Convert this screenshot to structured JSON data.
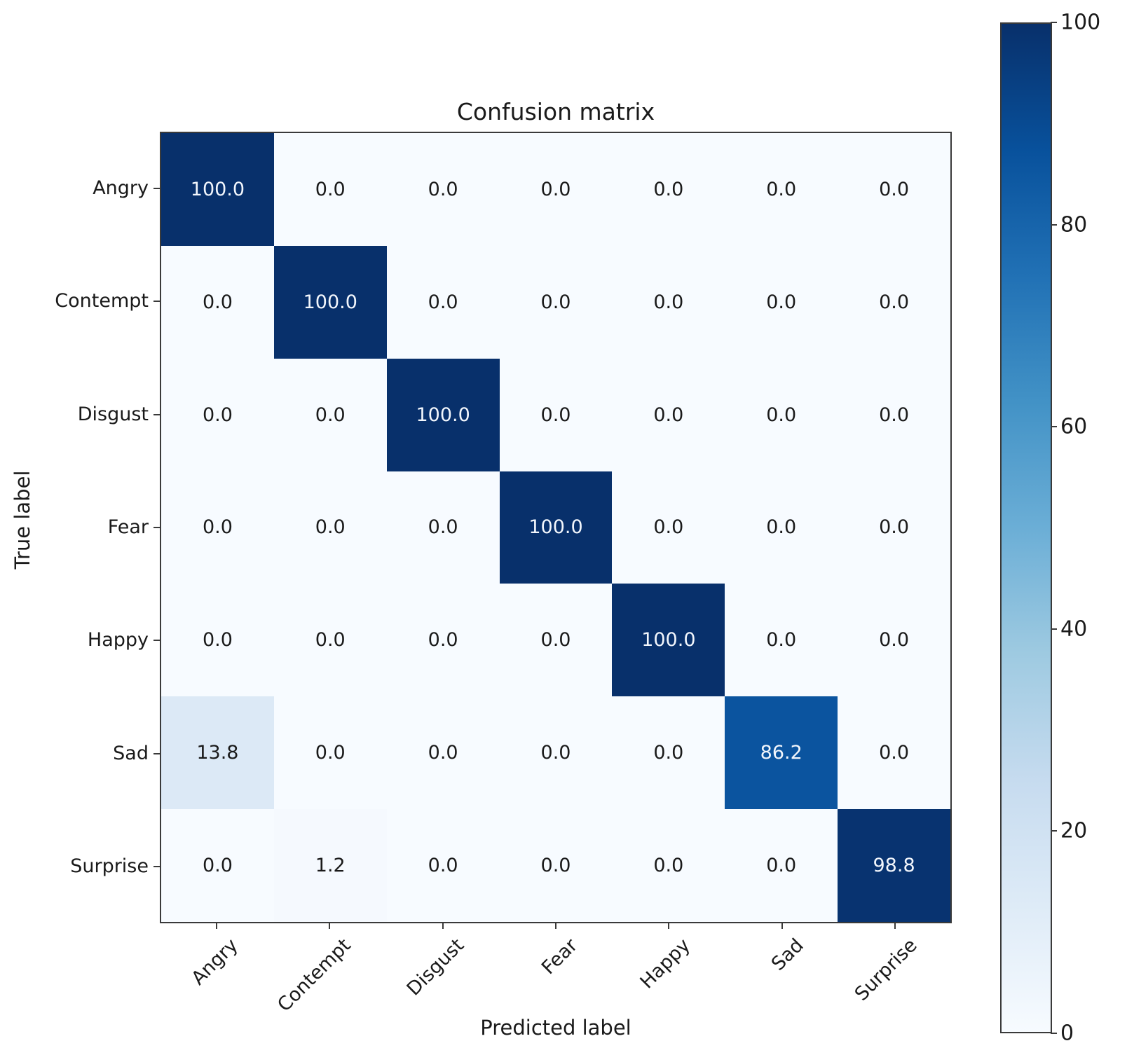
{
  "chart_data": {
    "type": "heatmap",
    "title": "Confusion matrix",
    "xlabel": "Predicted label",
    "ylabel": "True label",
    "categories": [
      "Angry",
      "Contempt",
      "Disgust",
      "Fear",
      "Happy",
      "Sad",
      "Surprise"
    ],
    "x_categories": [
      "Angry",
      "Contempt",
      "Disgust",
      "Fear",
      "Happy",
      "Sad",
      "Surprise"
    ],
    "matrix": [
      [
        100.0,
        0.0,
        0.0,
        0.0,
        0.0,
        0.0,
        0.0
      ],
      [
        0.0,
        100.0,
        0.0,
        0.0,
        0.0,
        0.0,
        0.0
      ],
      [
        0.0,
        0.0,
        100.0,
        0.0,
        0.0,
        0.0,
        0.0
      ],
      [
        0.0,
        0.0,
        0.0,
        100.0,
        0.0,
        0.0,
        0.0
      ],
      [
        0.0,
        0.0,
        0.0,
        0.0,
        100.0,
        0.0,
        0.0
      ],
      [
        13.8,
        0.0,
        0.0,
        0.0,
        0.0,
        86.2,
        0.0
      ],
      [
        0.0,
        1.2,
        0.0,
        0.0,
        0.0,
        0.0,
        98.8
      ]
    ],
    "value_decimals": 1,
    "vmin": 0,
    "vmax": 100,
    "colormap": "Blues",
    "colormap_stops": [
      "#f7fbff",
      "#deebf7",
      "#c6dbef",
      "#9ecae1",
      "#6baed6",
      "#4292c6",
      "#2171b5",
      "#08519c",
      "#08306b"
    ],
    "colorbar_ticks": [
      "100",
      "80",
      "60",
      "40",
      "20",
      "0"
    ],
    "colorbar_tick_values": [
      100,
      80,
      60,
      40,
      20,
      0
    ],
    "grid": false,
    "legend": "none"
  },
  "colors": {
    "frame": "#3a3a3a",
    "text": "#1a1a1a",
    "cell_text_light": "#f2f6fc",
    "background": "#ffffff"
  }
}
